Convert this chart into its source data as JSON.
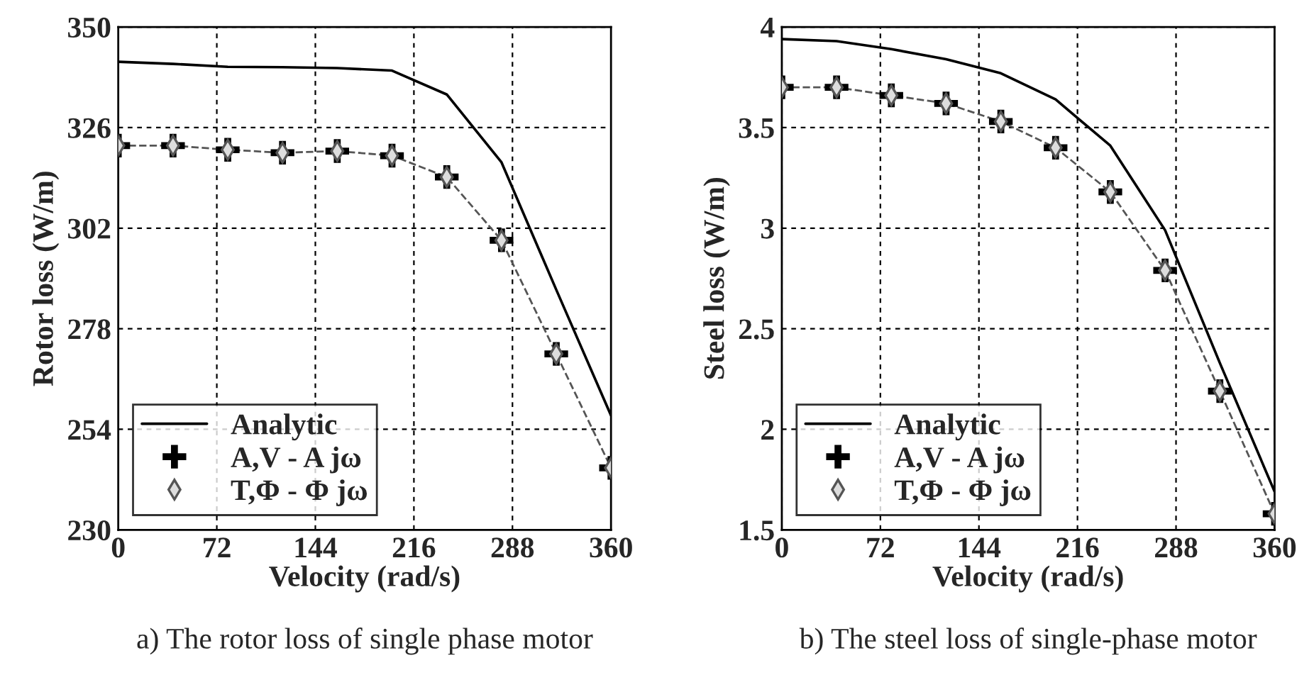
{
  "chart_data": [
    {
      "type": "line",
      "xlabel": "Velocity (rad/s)",
      "ylabel": "Rotor loss (W/m)",
      "x": [
        0,
        40,
        80,
        120,
        160,
        200,
        240,
        280,
        320,
        360
      ],
      "xlim": [
        0,
        360
      ],
      "xticks": [
        0,
        72,
        144,
        216,
        288,
        360
      ],
      "ylim": [
        230,
        350
      ],
      "yticks": [
        230,
        254,
        278,
        302,
        326,
        350
      ],
      "grid": true,
      "legend": "bottom left",
      "series": [
        {
          "name": "Analytic",
          "color": "#000000",
          "line_style": "solid",
          "values": [
            341.7,
            341.2,
            340.5,
            340.4,
            340.2,
            339.6,
            333.9,
            317.7,
            287.3,
            257.3
          ]
        },
        {
          "color": "#555555",
          "line_style": "dashed",
          "values": [
            321.7,
            321.7,
            320.7,
            320.0,
            320.4,
            319.3,
            314.2,
            299.1,
            272.0,
            244.8
          ]
        },
        {
          "name": "A,V - A jω",
          "color": "#000000",
          "type": "scatter",
          "marker": "cross",
          "values": [
            321.7,
            321.7,
            320.7,
            320.0,
            320.4,
            319.3,
            314.2,
            299.1,
            272.0,
            244.8
          ]
        },
        {
          "name": "T,Φ - Φ jω",
          "color": "#555555",
          "type": "scatter",
          "marker": "diamond",
          "values": [
            321.7,
            321.7,
            320.7,
            320.0,
            320.4,
            319.3,
            314.2,
            299.1,
            272.0,
            244.8
          ]
        }
      ],
      "annotations": [
        "a) The rotor loss of single phase motor"
      ]
    },
    {
      "type": "line",
      "xlabel": "Velocity (rad/s)",
      "ylabel": "Steel loss (W/m)",
      "x": [
        0,
        40,
        80,
        120,
        160,
        200,
        240,
        280,
        320,
        360
      ],
      "xlim": [
        0,
        360
      ],
      "xticks": [
        0,
        72,
        144,
        216,
        288,
        360
      ],
      "ylim": [
        1.5,
        4
      ],
      "yticks": [
        1.5,
        2,
        2.5,
        3,
        3.5,
        4
      ],
      "grid": true,
      "legend": "bottom left",
      "series": [
        {
          "name": "Analytic",
          "color": "#000000",
          "line_style": "solid",
          "values": [
            3.94,
            3.93,
            3.89,
            3.84,
            3.77,
            3.64,
            3.41,
            2.99,
            2.33,
            1.69
          ]
        },
        {
          "color": "#555555",
          "line_style": "dashed",
          "values": [
            3.7,
            3.7,
            3.66,
            3.62,
            3.53,
            3.4,
            3.18,
            2.79,
            2.19,
            1.58
          ]
        },
        {
          "name": "A,V - A jω",
          "color": "#000000",
          "type": "scatter",
          "marker": "cross",
          "values": [
            3.7,
            3.7,
            3.66,
            3.62,
            3.53,
            3.4,
            3.18,
            2.79,
            2.19,
            1.58
          ]
        },
        {
          "name": "T,Φ - Φ jω",
          "color": "#555555",
          "type": "scatter",
          "marker": "diamond",
          "values": [
            3.7,
            3.7,
            3.66,
            3.62,
            3.53,
            3.4,
            3.18,
            2.79,
            2.19,
            1.58
          ]
        }
      ],
      "annotations": [
        "b) The steel loss of single-phase motor"
      ]
    }
  ]
}
